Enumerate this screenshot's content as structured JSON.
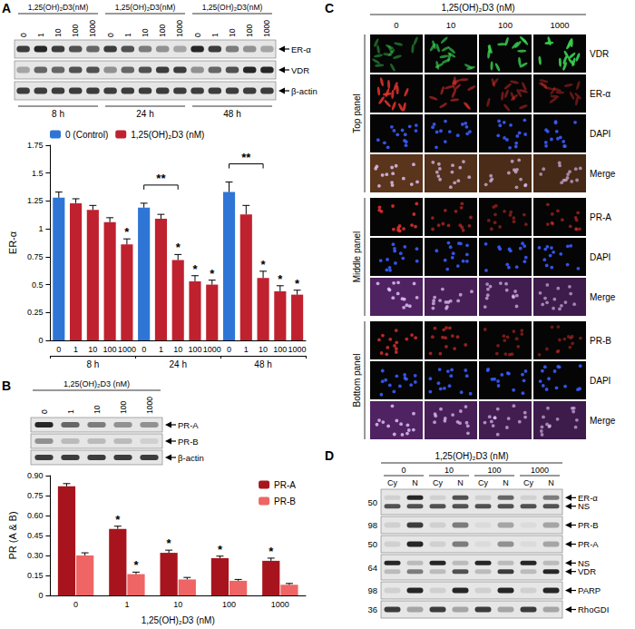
{
  "chart_data": [
    {
      "type": "bar",
      "categories": [
        "0",
        "1",
        "10",
        "100",
        "1000",
        "0",
        "1",
        "10",
        "100",
        "1000",
        "0",
        "1",
        "10",
        "100",
        "1000"
      ],
      "groups": [
        "8 h",
        "24 h",
        "48 h"
      ],
      "y_label": "ER-α",
      "ylim": [
        0,
        1.75
      ],
      "yticks": [
        0,
        0.25,
        0.5,
        0.75,
        1,
        1.25,
        1.5,
        1.75
      ],
      "grid": false,
      "legend": "top left",
      "series": [
        {
          "name": "0 (Control)",
          "color": "#2e75d6",
          "values": [
            1.28,
            null,
            null,
            null,
            null,
            1.19,
            null,
            null,
            null,
            null,
            1.33,
            null,
            null,
            null,
            null
          ],
          "errors": [
            0.05,
            null,
            null,
            null,
            null,
            0.04,
            null,
            null,
            null,
            null,
            0.09,
            null,
            null,
            null,
            null
          ]
        },
        {
          "name": "1,25(OH)₂D3 (nM)",
          "color": "#c0212e",
          "values": [
            null,
            1.23,
            1.17,
            1.06,
            0.86,
            null,
            1.09,
            0.72,
            0.53,
            0.5,
            null,
            1.13,
            0.56,
            0.44,
            0.41
          ],
          "errors": [
            null,
            0.04,
            0.04,
            0.04,
            0.05,
            null,
            0.04,
            0.05,
            0.05,
            0.04,
            null,
            0.08,
            0.06,
            0.05,
            0.04
          ],
          "significance": [
            null,
            null,
            null,
            null,
            "*",
            null,
            null,
            "*",
            "*",
            "*",
            null,
            null,
            "*",
            "*",
            "*"
          ]
        }
      ],
      "brackets": [
        {
          "from": 5,
          "to": 7,
          "label": "**"
        },
        {
          "from": 10,
          "to": 12,
          "label": "**"
        }
      ]
    },
    {
      "type": "bar",
      "categories": [
        "0",
        "1",
        "10",
        "100",
        "1000"
      ],
      "x_label": "1,25(OH)₂D3 (nM)",
      "y_label": "PR (A & B)",
      "ylim": [
        0,
        0.9
      ],
      "yticks": [
        0,
        0.15,
        {
          "value": 0.3,
          "label": "0.30"
        },
        0.45,
        {
          "value": 0.6,
          "label": "0.60"
        },
        0.75,
        {
          "value": 0.9,
          "label": "0.90"
        }
      ],
      "grid": false,
      "legend": "top right",
      "series": [
        {
          "name": "PR-A",
          "color": "#a8141d",
          "values": [
            0.82,
            0.5,
            0.32,
            0.28,
            0.26
          ],
          "errors": [
            0.02,
            0.02,
            0.02,
            0.015,
            0.02
          ],
          "significance": [
            null,
            "*",
            "*",
            "*",
            "*"
          ]
        },
        {
          "name": "PR-B",
          "color": "#ef6464",
          "values": [
            0.3,
            0.16,
            0.12,
            0.11,
            0.08
          ],
          "errors": [
            0.02,
            0.015,
            0.015,
            0.01,
            0.01
          ],
          "significance": [
            null,
            "*",
            null,
            null,
            null
          ]
        }
      ]
    }
  ],
  "panels": {
    "A": {
      "label": "A",
      "blot": {
        "treatment": "1,25(OH)₂D3(nM)",
        "lanes": [
          "0",
          "1",
          "10",
          "100",
          "1000",
          "0",
          "1",
          "10",
          "100",
          "1000",
          "0",
          "1",
          "10",
          "100",
          "1000"
        ],
        "groups": [
          "8 h",
          "24 h",
          "48 h"
        ],
        "bands": [
          {
            "name": "ER-α",
            "intensity": [
              0.8,
              0.9,
              0.8,
              0.7,
              0.6,
              0.8,
              0.7,
              0.5,
              0.4,
              0.3,
              0.9,
              0.8,
              0.5,
              0.4,
              0.3
            ]
          },
          {
            "name": "VDR",
            "intensity": [
              0.3,
              0.6,
              0.6,
              0.7,
              0.7,
              0.4,
              0.6,
              0.7,
              0.8,
              0.8,
              0.4,
              0.6,
              0.7,
              0.9,
              0.9
            ]
          },
          {
            "name": "β-actin",
            "intensity": [
              0.8,
              0.8,
              0.8,
              0.8,
              0.8,
              0.8,
              0.8,
              0.8,
              0.8,
              0.8,
              0.8,
              0.8,
              0.8,
              0.8,
              0.8
            ]
          }
        ]
      }
    },
    "B": {
      "label": "B",
      "blot": {
        "treatment": "1,25(OH)₂D3 (nM)",
        "lanes": [
          "0",
          "1",
          "10",
          "100",
          "1000"
        ],
        "bands": [
          {
            "name": "PR-A",
            "intensity": [
              0.9,
              0.6,
              0.5,
              0.4,
              0.4
            ]
          },
          {
            "name": "PR-B",
            "intensity": [
              0.4,
              0.2,
              0.2,
              0.2,
              0.1
            ]
          },
          {
            "name": "β-actin",
            "intensity": [
              0.8,
              0.8,
              0.8,
              0.8,
              0.8
            ]
          }
        ]
      }
    },
    "C": {
      "label": "C",
      "treatment": "1,25(OH)₂D3 (nM)",
      "columns": [
        "0",
        "10",
        "100",
        "1000"
      ],
      "sections": [
        {
          "name": "Top panel",
          "rows": [
            {
              "label": "VDR",
              "color": "#39d353",
              "marker": "elongated",
              "intensity": [
                0.45,
                0.65,
                0.8,
                0.9
              ]
            },
            {
              "label": "ER-α",
              "color": "#e8322e",
              "marker": "elongated",
              "intensity": [
                0.85,
                0.55,
                0.45,
                0.4
              ]
            },
            {
              "label": "DAPI",
              "color": "#3a5cff",
              "marker": "dot",
              "intensity": [
                0.9,
                0.9,
                0.9,
                0.9
              ]
            },
            {
              "label": "Merge",
              "color": "#c8743c",
              "marker": "overlay",
              "intensity": [
                0.8,
                0.7,
                0.65,
                0.6
              ]
            }
          ]
        },
        {
          "name": "Middle panel",
          "rows": [
            {
              "label": "PR-A",
              "color": "#e8322e",
              "marker": "dot",
              "intensity": [
                0.85,
                0.6,
                0.5,
                0.55
              ]
            },
            {
              "label": "DAPI",
              "color": "#3a5cff",
              "marker": "dot",
              "intensity": [
                0.9,
                0.9,
                0.9,
                0.9
              ]
            },
            {
              "label": "Merge",
              "color": "#b048d8",
              "marker": "overlay",
              "intensity": [
                0.8,
                0.7,
                0.65,
                0.6
              ]
            }
          ]
        },
        {
          "name": "Bottom panel",
          "rows": [
            {
              "label": "PR-B",
              "color": "#e8322e",
              "marker": "dot",
              "intensity": [
                0.8,
                0.65,
                0.5,
                0.45
              ]
            },
            {
              "label": "DAPI",
              "color": "#3a5cff",
              "marker": "dot",
              "intensity": [
                0.9,
                0.9,
                0.9,
                0.9
              ]
            },
            {
              "label": "Merge",
              "color": "#b048d8",
              "marker": "overlay",
              "intensity": [
                0.8,
                0.7,
                0.65,
                0.6
              ]
            }
          ]
        }
      ]
    },
    "D": {
      "label": "D",
      "treatment": "1,25(OH)₂D3 (nM)",
      "groups": [
        "0",
        "10",
        "100",
        "1000"
      ],
      "fractions": [
        "Cy",
        "N",
        "Cy",
        "N",
        "Cy",
        "N",
        "Cy",
        "N"
      ],
      "rows": [
        {
          "mw": 50,
          "labels": [
            "ER-α",
            "NS"
          ],
          "bands": [
            [
              0.1,
              0.9,
              0.1,
              0.7,
              0.1,
              0.6,
              0.1,
              0.5
            ],
            [
              0.7,
              0.7,
              0.7,
              0.7,
              0.7,
              0.7,
              0.7,
              0.7
            ]
          ]
        },
        {
          "mw": 98,
          "labels": [
            "PR-B"
          ],
          "bands": [
            [
              0.1,
              0.8,
              0.1,
              0.5,
              0.05,
              0.3,
              0.05,
              0.3
            ]
          ]
        },
        {
          "mw": 50,
          "labels": [
            "PR-A"
          ],
          "bands": [
            [
              0.1,
              0.9,
              0.1,
              0.5,
              0.05,
              0.4,
              0.05,
              0.3
            ]
          ]
        },
        {
          "mw": 64,
          "labels": [
            "NS",
            "VDR"
          ],
          "bands": [
            [
              0.9,
              0.2,
              0.9,
              0.2,
              0.9,
              0.2,
              0.9,
              0.2
            ],
            [
              0.2,
              0.5,
              0.2,
              0.7,
              0.2,
              0.8,
              0.2,
              0.9
            ]
          ]
        },
        {
          "mw": 98,
          "labels": [
            "PARP"
          ],
          "bands": [
            [
              0.1,
              0.9,
              0.1,
              0.9,
              0.1,
              0.9,
              0.1,
              0.9
            ]
          ]
        },
        {
          "mw": 36,
          "labels": [
            "RhoGDI"
          ],
          "bands": [
            [
              0.8,
              0.3,
              0.8,
              0.3,
              0.8,
              0.3,
              0.8,
              0.3
            ]
          ]
        }
      ]
    }
  }
}
